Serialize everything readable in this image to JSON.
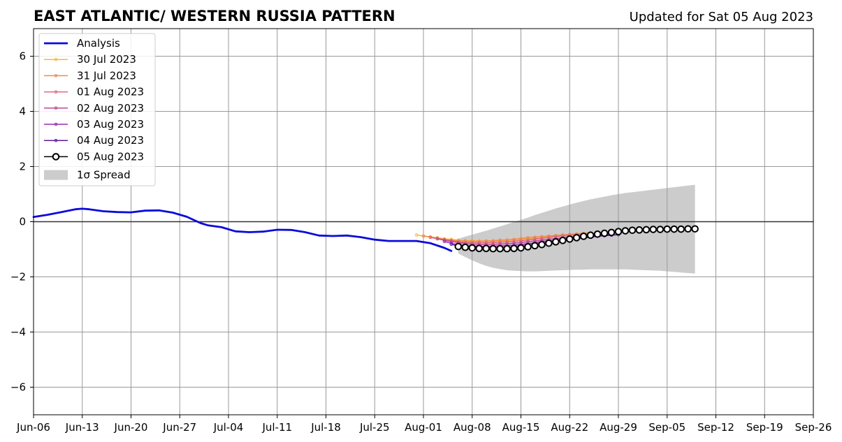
{
  "chart_data": {
    "type": "line",
    "title": "EAST ATLANTIC/ WESTERN RUSSIA PATTERN",
    "subtitle": "Updated for Sat 05 Aug 2023",
    "xlabel": "",
    "ylabel": "",
    "x_axis": {
      "type": "date",
      "range": [
        "2023-06-06",
        "2023-09-26"
      ],
      "tick_dates": [
        "2023-06-06",
        "2023-06-13",
        "2023-06-20",
        "2023-06-27",
        "2023-07-04",
        "2023-07-11",
        "2023-07-18",
        "2023-07-25",
        "2023-08-01",
        "2023-08-08",
        "2023-08-15",
        "2023-08-22",
        "2023-08-29",
        "2023-09-05",
        "2023-09-12",
        "2023-09-19",
        "2023-09-26"
      ],
      "tick_labels": [
        "Jun-06",
        "Jun-13",
        "Jun-20",
        "Jun-27",
        "Jul-04",
        "Jul-11",
        "Jul-18",
        "Jul-25",
        "Aug-01",
        "Aug-08",
        "Aug-15",
        "Aug-22",
        "Aug-29",
        "Sep-05",
        "Sep-12",
        "Sep-19",
        "Sep-26"
      ]
    },
    "y_axis": {
      "range": [
        -7,
        7
      ],
      "ticks": [
        -6,
        -4,
        -2,
        0,
        2,
        4,
        6
      ],
      "tick_labels": [
        "−6",
        "−4",
        "−2",
        "0",
        "2",
        "4",
        "6"
      ]
    },
    "grid": true,
    "zero_line": true,
    "legend_position": "top-left",
    "series": [
      {
        "name": "Analysis",
        "color": "#0a0adc",
        "style": "thick-line",
        "points": [
          [
            "2023-06-06",
            0.17
          ],
          [
            "2023-06-08",
            0.25
          ],
          [
            "2023-06-10",
            0.35
          ],
          [
            "2023-06-12",
            0.45
          ],
          [
            "2023-06-13",
            0.47
          ],
          [
            "2023-06-14",
            0.45
          ],
          [
            "2023-06-16",
            0.38
          ],
          [
            "2023-06-18",
            0.35
          ],
          [
            "2023-06-20",
            0.34
          ],
          [
            "2023-06-22",
            0.4
          ],
          [
            "2023-06-24",
            0.41
          ],
          [
            "2023-06-26",
            0.33
          ],
          [
            "2023-06-28",
            0.18
          ],
          [
            "2023-06-30",
            -0.05
          ],
          [
            "2023-07-01",
            -0.13
          ],
          [
            "2023-07-03",
            -0.2
          ],
          [
            "2023-07-05",
            -0.35
          ],
          [
            "2023-07-07",
            -0.38
          ],
          [
            "2023-07-09",
            -0.36
          ],
          [
            "2023-07-11",
            -0.29
          ],
          [
            "2023-07-13",
            -0.3
          ],
          [
            "2023-07-15",
            -0.38
          ],
          [
            "2023-07-17",
            -0.5
          ],
          [
            "2023-07-19",
            -0.52
          ],
          [
            "2023-07-21",
            -0.5
          ],
          [
            "2023-07-23",
            -0.56
          ],
          [
            "2023-07-25",
            -0.65
          ],
          [
            "2023-07-27",
            -0.7
          ],
          [
            "2023-07-29",
            -0.7
          ],
          [
            "2023-07-31",
            -0.7
          ],
          [
            "2023-08-02",
            -0.78
          ],
          [
            "2023-08-04",
            -0.95
          ],
          [
            "2023-08-05",
            -1.06
          ]
        ]
      },
      {
        "name": "30 Jul 2023",
        "color": "#f5b93a",
        "style": "thin-dot",
        "points": [
          [
            "2023-07-31",
            -0.48
          ],
          [
            "2023-08-01",
            -0.52
          ],
          [
            "2023-08-02",
            -0.55
          ],
          [
            "2023-08-03",
            -0.58
          ],
          [
            "2023-08-04",
            -0.62
          ],
          [
            "2023-08-05",
            -0.64
          ],
          [
            "2023-08-06",
            -0.67
          ],
          [
            "2023-08-07",
            -0.68
          ],
          [
            "2023-08-08",
            -0.69
          ],
          [
            "2023-08-09",
            -0.7
          ],
          [
            "2023-08-10",
            -0.7
          ],
          [
            "2023-08-11",
            -0.7
          ],
          [
            "2023-08-12",
            -0.69
          ],
          [
            "2023-08-13",
            -0.68
          ],
          [
            "2023-08-14",
            -0.66
          ],
          [
            "2023-08-15",
            -0.64
          ],
          [
            "2023-08-16",
            -0.62
          ],
          [
            "2023-08-17",
            -0.6
          ],
          [
            "2023-08-18",
            -0.57
          ],
          [
            "2023-08-19",
            -0.54
          ],
          [
            "2023-08-20",
            -0.51
          ],
          [
            "2023-08-21",
            -0.48
          ],
          [
            "2023-08-22",
            -0.46
          ],
          [
            "2023-08-23",
            -0.44
          ],
          [
            "2023-08-24",
            -0.42
          ]
        ]
      },
      {
        "name": "31 Jul 2023",
        "color": "#f08a4b",
        "style": "thin-dot",
        "points": [
          [
            "2023-08-01",
            -0.52
          ],
          [
            "2023-08-02",
            -0.56
          ],
          [
            "2023-08-03",
            -0.6
          ],
          [
            "2023-08-04",
            -0.64
          ],
          [
            "2023-08-05",
            -0.67
          ],
          [
            "2023-08-06",
            -0.69
          ],
          [
            "2023-08-07",
            -0.7
          ],
          [
            "2023-08-08",
            -0.71
          ],
          [
            "2023-08-09",
            -0.71
          ],
          [
            "2023-08-10",
            -0.7
          ],
          [
            "2023-08-11",
            -0.69
          ],
          [
            "2023-08-12",
            -0.67
          ],
          [
            "2023-08-13",
            -0.66
          ],
          [
            "2023-08-14",
            -0.64
          ],
          [
            "2023-08-15",
            -0.61
          ],
          [
            "2023-08-16",
            -0.58
          ],
          [
            "2023-08-17",
            -0.56
          ],
          [
            "2023-08-18",
            -0.54
          ],
          [
            "2023-08-19",
            -0.52
          ],
          [
            "2023-08-20",
            -0.5
          ],
          [
            "2023-08-21",
            -0.48
          ],
          [
            "2023-08-22",
            -0.46
          ],
          [
            "2023-08-23",
            -0.44
          ],
          [
            "2023-08-24",
            -0.42
          ],
          [
            "2023-08-25",
            -0.4
          ]
        ]
      },
      {
        "name": "01 Aug 2023",
        "color": "#e0687a",
        "style": "thin-dot",
        "points": [
          [
            "2023-08-02",
            -0.57
          ],
          [
            "2023-08-03",
            -0.62
          ],
          [
            "2023-08-04",
            -0.66
          ],
          [
            "2023-08-05",
            -0.7
          ],
          [
            "2023-08-06",
            -0.73
          ],
          [
            "2023-08-07",
            -0.75
          ],
          [
            "2023-08-08",
            -0.76
          ],
          [
            "2023-08-09",
            -0.76
          ],
          [
            "2023-08-10",
            -0.76
          ],
          [
            "2023-08-11",
            -0.75
          ],
          [
            "2023-08-12",
            -0.74
          ],
          [
            "2023-08-13",
            -0.73
          ],
          [
            "2023-08-14",
            -0.71
          ],
          [
            "2023-08-15",
            -0.69
          ],
          [
            "2023-08-16",
            -0.66
          ],
          [
            "2023-08-17",
            -0.63
          ],
          [
            "2023-08-18",
            -0.6
          ],
          [
            "2023-08-19",
            -0.57
          ],
          [
            "2023-08-20",
            -0.54
          ],
          [
            "2023-08-21",
            -0.51
          ],
          [
            "2023-08-22",
            -0.49
          ],
          [
            "2023-08-23",
            -0.47
          ],
          [
            "2023-08-24",
            -0.45
          ],
          [
            "2023-08-25",
            -0.43
          ],
          [
            "2023-08-26",
            -0.42
          ]
        ]
      },
      {
        "name": "02 Aug 2023",
        "color": "#c04a93",
        "style": "thin-dot",
        "points": [
          [
            "2023-08-03",
            -0.62
          ],
          [
            "2023-08-04",
            -0.67
          ],
          [
            "2023-08-05",
            -0.72
          ],
          [
            "2023-08-06",
            -0.76
          ],
          [
            "2023-08-07",
            -0.79
          ],
          [
            "2023-08-08",
            -0.81
          ],
          [
            "2023-08-09",
            -0.82
          ],
          [
            "2023-08-10",
            -0.82
          ],
          [
            "2023-08-11",
            -0.82
          ],
          [
            "2023-08-12",
            -0.81
          ],
          [
            "2023-08-13",
            -0.8
          ],
          [
            "2023-08-14",
            -0.78
          ],
          [
            "2023-08-15",
            -0.76
          ],
          [
            "2023-08-16",
            -0.73
          ],
          [
            "2023-08-17",
            -0.7
          ],
          [
            "2023-08-18",
            -0.67
          ],
          [
            "2023-08-19",
            -0.64
          ],
          [
            "2023-08-20",
            -0.61
          ],
          [
            "2023-08-21",
            -0.58
          ],
          [
            "2023-08-22",
            -0.55
          ],
          [
            "2023-08-23",
            -0.52
          ],
          [
            "2023-08-24",
            -0.5
          ],
          [
            "2023-08-25",
            -0.48
          ],
          [
            "2023-08-26",
            -0.46
          ],
          [
            "2023-08-27",
            -0.45
          ]
        ]
      },
      {
        "name": "03 Aug 2023",
        "color": "#9a2bb0",
        "style": "thin-dot",
        "points": [
          [
            "2023-08-04",
            -0.72
          ],
          [
            "2023-08-05",
            -0.78
          ],
          [
            "2023-08-06",
            -0.83
          ],
          [
            "2023-08-07",
            -0.86
          ],
          [
            "2023-08-08",
            -0.88
          ],
          [
            "2023-08-09",
            -0.89
          ],
          [
            "2023-08-10",
            -0.89
          ],
          [
            "2023-08-11",
            -0.89
          ],
          [
            "2023-08-12",
            -0.88
          ],
          [
            "2023-08-13",
            -0.87
          ],
          [
            "2023-08-14",
            -0.85
          ],
          [
            "2023-08-15",
            -0.83
          ],
          [
            "2023-08-16",
            -0.8
          ],
          [
            "2023-08-17",
            -0.77
          ],
          [
            "2023-08-18",
            -0.73
          ],
          [
            "2023-08-19",
            -0.7
          ],
          [
            "2023-08-20",
            -0.67
          ],
          [
            "2023-08-21",
            -0.64
          ],
          [
            "2023-08-22",
            -0.61
          ],
          [
            "2023-08-23",
            -0.58
          ],
          [
            "2023-08-24",
            -0.55
          ],
          [
            "2023-08-25",
            -0.53
          ],
          [
            "2023-08-26",
            -0.51
          ],
          [
            "2023-08-27",
            -0.49
          ],
          [
            "2023-08-28",
            -0.47
          ]
        ]
      },
      {
        "name": "04 Aug 2023",
        "color": "#5a1a9e",
        "style": "thin-dot",
        "points": [
          [
            "2023-08-05",
            -0.82
          ],
          [
            "2023-08-06",
            -0.88
          ],
          [
            "2023-08-07",
            -0.92
          ],
          [
            "2023-08-08",
            -0.94
          ],
          [
            "2023-08-09",
            -0.95
          ],
          [
            "2023-08-10",
            -0.96
          ],
          [
            "2023-08-11",
            -0.96
          ],
          [
            "2023-08-12",
            -0.95
          ],
          [
            "2023-08-13",
            -0.94
          ],
          [
            "2023-08-14",
            -0.92
          ],
          [
            "2023-08-15",
            -0.9
          ],
          [
            "2023-08-16",
            -0.87
          ],
          [
            "2023-08-17",
            -0.84
          ],
          [
            "2023-08-18",
            -0.8
          ],
          [
            "2023-08-19",
            -0.76
          ],
          [
            "2023-08-20",
            -0.72
          ],
          [
            "2023-08-21",
            -0.68
          ],
          [
            "2023-08-22",
            -0.65
          ],
          [
            "2023-08-23",
            -0.62
          ],
          [
            "2023-08-24",
            -0.59
          ],
          [
            "2023-08-25",
            -0.56
          ],
          [
            "2023-08-26",
            -0.53
          ],
          [
            "2023-08-27",
            -0.51
          ],
          [
            "2023-08-28",
            -0.49
          ],
          [
            "2023-08-29",
            -0.47
          ]
        ]
      },
      {
        "name": "05 Aug 2023",
        "color": "#000000",
        "style": "circle-markers",
        "points": [
          [
            "2023-08-06",
            -0.9
          ],
          [
            "2023-08-07",
            -0.93
          ],
          [
            "2023-08-08",
            -0.95
          ],
          [
            "2023-08-09",
            -0.97
          ],
          [
            "2023-08-10",
            -0.97
          ],
          [
            "2023-08-11",
            -0.98
          ],
          [
            "2023-08-12",
            -0.98
          ],
          [
            "2023-08-13",
            -0.98
          ],
          [
            "2023-08-14",
            -0.97
          ],
          [
            "2023-08-15",
            -0.95
          ],
          [
            "2023-08-16",
            -0.91
          ],
          [
            "2023-08-17",
            -0.87
          ],
          [
            "2023-08-18",
            -0.83
          ],
          [
            "2023-08-19",
            -0.78
          ],
          [
            "2023-08-20",
            -0.73
          ],
          [
            "2023-08-21",
            -0.68
          ],
          [
            "2023-08-22",
            -0.63
          ],
          [
            "2023-08-23",
            -0.58
          ],
          [
            "2023-08-24",
            -0.53
          ],
          [
            "2023-08-25",
            -0.49
          ],
          [
            "2023-08-26",
            -0.45
          ],
          [
            "2023-08-27",
            -0.42
          ],
          [
            "2023-08-28",
            -0.39
          ],
          [
            "2023-08-29",
            -0.36
          ],
          [
            "2023-08-30",
            -0.33
          ],
          [
            "2023-08-31",
            -0.31
          ],
          [
            "2023-09-01",
            -0.3
          ],
          [
            "2023-09-02",
            -0.29
          ],
          [
            "2023-09-03",
            -0.28
          ],
          [
            "2023-09-04",
            -0.28
          ],
          [
            "2023-09-05",
            -0.27
          ],
          [
            "2023-09-06",
            -0.27
          ],
          [
            "2023-09-07",
            -0.27
          ],
          [
            "2023-09-08",
            -0.26
          ],
          [
            "2023-09-09",
            -0.26
          ]
        ]
      }
    ],
    "spread": {
      "name": "1σ Spread",
      "color": "#cccccc",
      "start_date": "2023-08-06",
      "end_date": "2023-09-09",
      "upper": [
        -0.62,
        -0.54,
        -0.47,
        -0.4,
        -0.33,
        -0.25,
        -0.17,
        -0.09,
        -0.01,
        0.07,
        0.15,
        0.24,
        0.32,
        0.4,
        0.48,
        0.55,
        0.62,
        0.69,
        0.75,
        0.81,
        0.86,
        0.91,
        0.96,
        1.0,
        1.04,
        1.07,
        1.1,
        1.13,
        1.16,
        1.19,
        1.22,
        1.25,
        1.28,
        1.31,
        1.34
      ],
      "lower": [
        -1.15,
        -1.28,
        -1.4,
        -1.51,
        -1.6,
        -1.67,
        -1.72,
        -1.76,
        -1.78,
        -1.79,
        -1.8,
        -1.8,
        -1.79,
        -1.78,
        -1.77,
        -1.76,
        -1.75,
        -1.74,
        -1.74,
        -1.73,
        -1.73,
        -1.73,
        -1.73,
        -1.73,
        -1.73,
        -1.74,
        -1.75,
        -1.76,
        -1.77,
        -1.78,
        -1.8,
        -1.82,
        -1.84,
        -1.86,
        -1.88
      ]
    }
  }
}
